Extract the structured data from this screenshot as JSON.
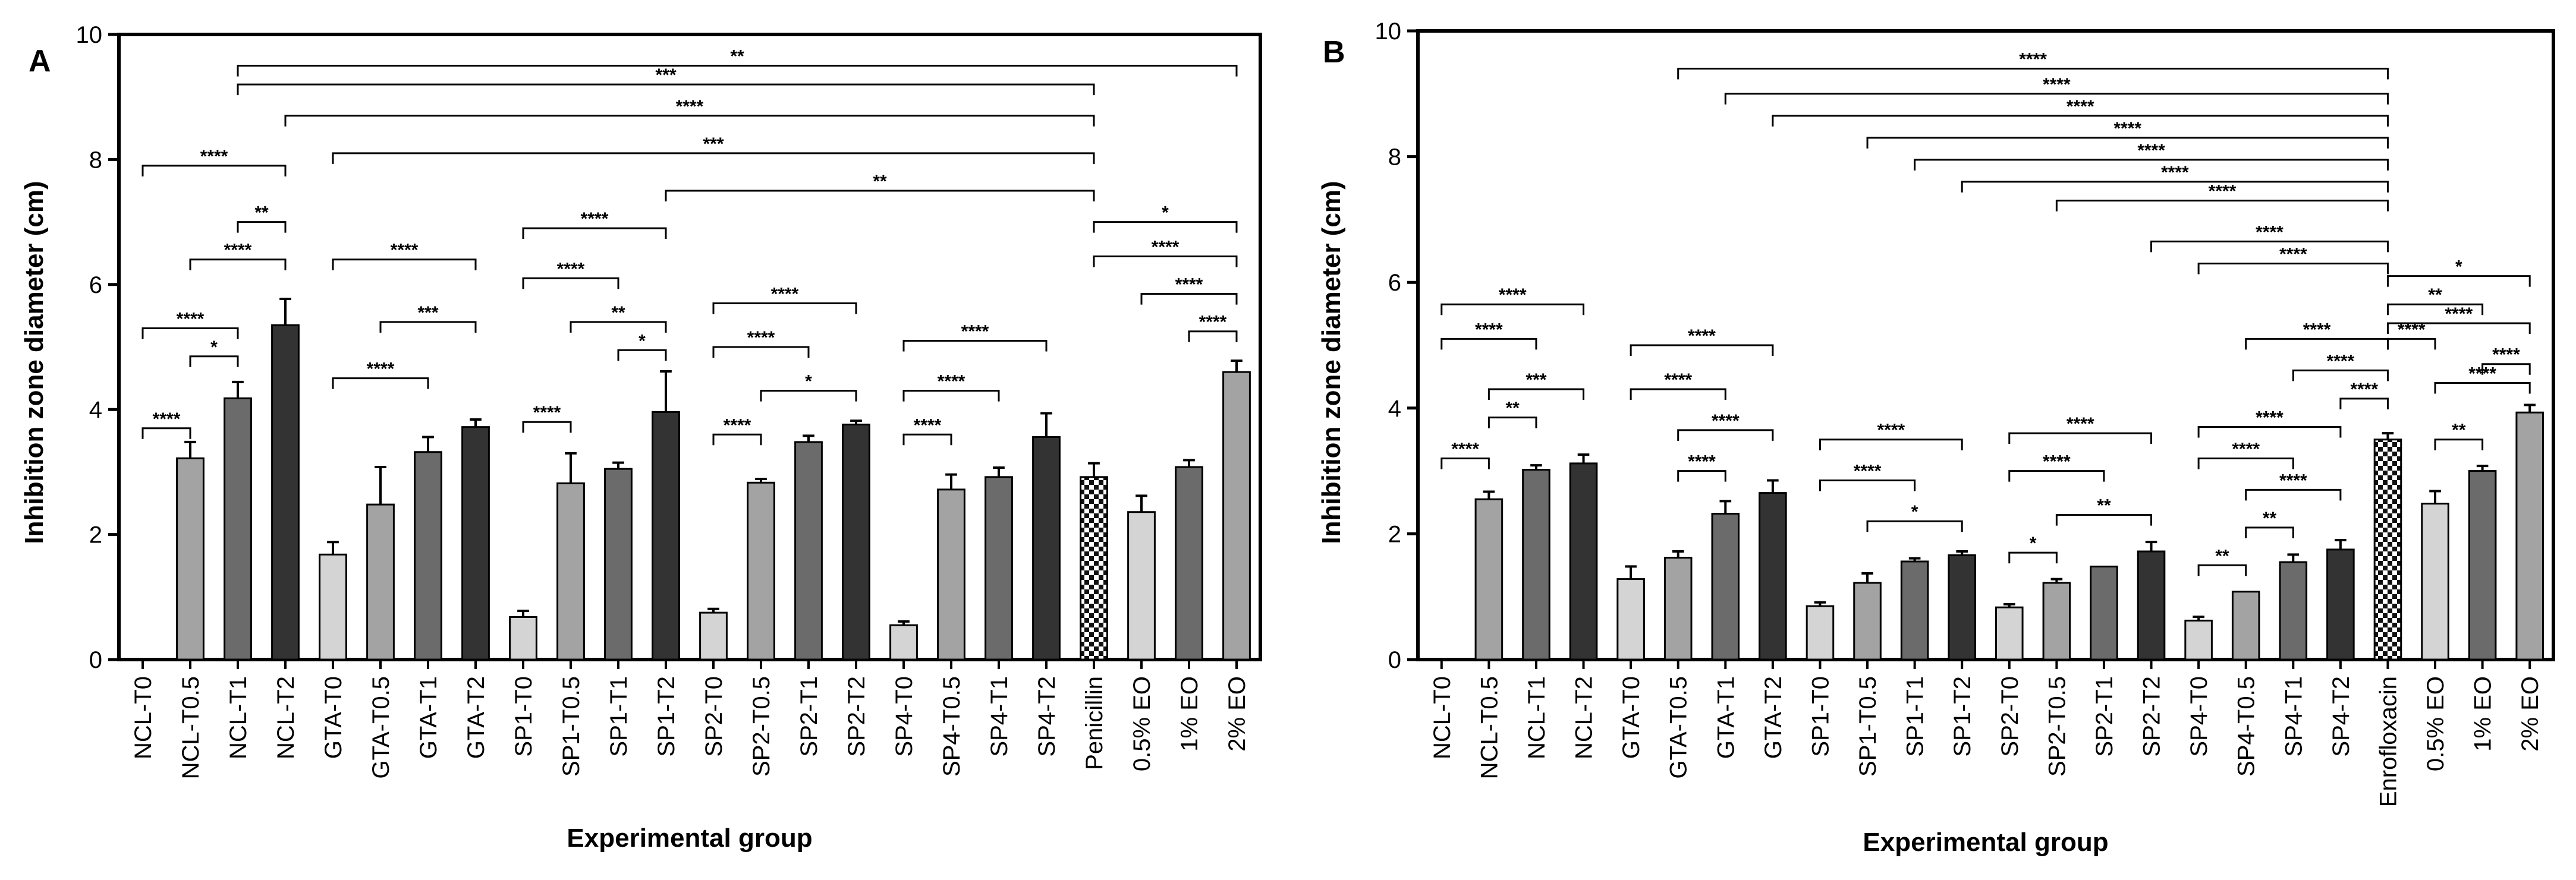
{
  "chart_data": [
    {
      "panel": "A",
      "type": "bar",
      "xlabel": "Experimental group",
      "ylabel": "Inhibition zone diameter (cm)",
      "ylim": [
        0,
        10
      ],
      "yticks": [
        0,
        2,
        4,
        6,
        8,
        10
      ],
      "categories": [
        "NCL-T0",
        "NCL-T0.5",
        "NCL-T1",
        "NCL-T2",
        "GTA-T0",
        "GTA-T0.5",
        "GTA-T1",
        "GTA-T2",
        "SP1-T0",
        "SP1-T0.5",
        "SP1-T1",
        "SP1-T2",
        "SP2-T0",
        "SP2-T0.5",
        "SP2-T1",
        "SP2-T2",
        "SP4-T0",
        "SP4-T0.5",
        "SP4-T1",
        "SP4-T2",
        "Penicillin",
        "0.5% EO",
        "1% EO",
        "2% EO"
      ],
      "values": [
        0,
        3.22,
        4.18,
        5.35,
        1.68,
        2.48,
        3.32,
        3.72,
        0.68,
        2.82,
        3.05,
        3.96,
        0.75,
        2.83,
        3.48,
        3.76,
        0.55,
        2.72,
        2.92,
        3.56,
        2.92,
        2.36,
        3.08,
        4.6
      ],
      "errors": [
        0,
        0.26,
        0.26,
        0.42,
        0.2,
        0.6,
        0.24,
        0.12,
        0.1,
        0.48,
        0.1,
        0.65,
        0.06,
        0.06,
        0.1,
        0.06,
        0.06,
        0.24,
        0.15,
        0.38,
        0.22,
        0.26,
        0.11,
        0.18
      ],
      "colors": [
        "#d4d4d4",
        "#a3a3a3",
        "#6b6b6b",
        "#333333",
        "#d4d4d4",
        "#a3a3a3",
        "#6b6b6b",
        "#333333",
        "#d4d4d4",
        "#a3a3a3",
        "#6b6b6b",
        "#333333",
        "#d4d4d4",
        "#a3a3a3",
        "#6b6b6b",
        "#333333",
        "#d4d4d4",
        "#a3a3a3",
        "#6b6b6b",
        "#333333",
        "checker",
        "#d4d4d4",
        "#6b6b6b",
        "#a3a3a3"
      ],
      "significance": [
        {
          "from": 0,
          "to": 1,
          "y": 3.7,
          "label": "****"
        },
        {
          "from": 0,
          "to": 2,
          "y": 5.3,
          "label": "****"
        },
        {
          "from": 1,
          "to": 2,
          "y": 4.85,
          "label": "*"
        },
        {
          "from": 0,
          "to": 3,
          "y": 7.9,
          "label": "****"
        },
        {
          "from": 1,
          "to": 3,
          "y": 6.4,
          "label": "****"
        },
        {
          "from": 2,
          "to": 3,
          "y": 7.0,
          "label": "**"
        },
        {
          "from": 4,
          "to": 6,
          "y": 4.5,
          "label": "****"
        },
        {
          "from": 4,
          "to": 7,
          "y": 6.4,
          "label": "****"
        },
        {
          "from": 5,
          "to": 7,
          "y": 5.4,
          "label": "***"
        },
        {
          "from": 8,
          "to": 9,
          "y": 3.8,
          "label": "****"
        },
        {
          "from": 8,
          "to": 10,
          "y": 6.1,
          "label": "****"
        },
        {
          "from": 8,
          "to": 11,
          "y": 6.9,
          "label": "****"
        },
        {
          "from": 9,
          "to": 11,
          "y": 5.4,
          "label": "**"
        },
        {
          "from": 10,
          "to": 11,
          "y": 4.95,
          "label": "*"
        },
        {
          "from": 12,
          "to": 13,
          "y": 3.6,
          "label": "****"
        },
        {
          "from": 12,
          "to": 14,
          "y": 5.0,
          "label": "****"
        },
        {
          "from": 12,
          "to": 15,
          "y": 5.7,
          "label": "****"
        },
        {
          "from": 13,
          "to": 15,
          "y": 4.3,
          "label": "*"
        },
        {
          "from": 16,
          "to": 17,
          "y": 3.6,
          "label": "****"
        },
        {
          "from": 16,
          "to": 18,
          "y": 4.3,
          "label": "****"
        },
        {
          "from": 16,
          "to": 19,
          "y": 5.1,
          "label": "****"
        },
        {
          "from": 20,
          "to": 23,
          "y": 7.0,
          "label": "*"
        },
        {
          "from": 20,
          "to": 23,
          "y": 6.45,
          "label": "****"
        },
        {
          "from": 21,
          "to": 23,
          "y": 5.85,
          "label": "****"
        },
        {
          "from": 22,
          "to": 23,
          "y": 5.25,
          "label": "****"
        },
        {
          "from": 11,
          "to": 20,
          "y": 7.5,
          "label": "**"
        },
        {
          "from": 4,
          "to": 20,
          "y": 8.1,
          "label": "***"
        },
        {
          "from": 3,
          "to": 20,
          "y": 8.7,
          "label": "****"
        },
        {
          "from": 2,
          "to": 20,
          "y": 9.2,
          "label": "***"
        },
        {
          "from": 2,
          "to": 23,
          "y": 9.5,
          "label": "**"
        }
      ]
    },
    {
      "panel": "B",
      "type": "bar",
      "xlabel": "Experimental group",
      "ylabel": "Inhibition zone diameter (cm)",
      "ylim": [
        0,
        10
      ],
      "yticks": [
        0,
        2,
        4,
        6,
        8,
        10
      ],
      "categories": [
        "NCL-T0",
        "NCL-T0.5",
        "NCL-T1",
        "NCL-T2",
        "GTA-T0",
        "GTA-T0.5",
        "GTA-T1",
        "GTA-T2",
        "SP1-T0",
        "SP1-T0.5",
        "SP1-T1",
        "SP1-T2",
        "SP2-T0",
        "SP2-T0.5",
        "SP2-T1",
        "SP2-T2",
        "SP4-T0",
        "SP4-T0.5",
        "SP4-T1",
        "SP4-T2",
        "Enrofloxacin",
        "0.5% EO",
        "1% EO",
        "2% EO"
      ],
      "values": [
        0,
        2.55,
        3.02,
        3.12,
        1.28,
        1.62,
        2.32,
        2.65,
        0.85,
        1.22,
        1.56,
        1.66,
        0.83,
        1.22,
        1.48,
        1.72,
        0.62,
        1.08,
        1.55,
        1.75,
        3.5,
        2.48,
        3.0,
        3.93
      ],
      "errors": [
        0,
        0.12,
        0.07,
        0.14,
        0.2,
        0.1,
        0.2,
        0.2,
        0.06,
        0.15,
        0.05,
        0.06,
        0.05,
        0.06,
        0.0,
        0.15,
        0.06,
        0.0,
        0.12,
        0.15,
        0.1,
        0.2,
        0.08,
        0.12
      ],
      "colors": [
        "#d4d4d4",
        "#a3a3a3",
        "#6b6b6b",
        "#333333",
        "#d4d4d4",
        "#a3a3a3",
        "#6b6b6b",
        "#333333",
        "#d4d4d4",
        "#a3a3a3",
        "#6b6b6b",
        "#333333",
        "#d4d4d4",
        "#a3a3a3",
        "#6b6b6b",
        "#333333",
        "#d4d4d4",
        "#a3a3a3",
        "#6b6b6b",
        "#333333",
        "checker",
        "#d4d4d4",
        "#6b6b6b",
        "#a3a3a3"
      ],
      "significance": [
        {
          "from": 0,
          "to": 1,
          "y": 3.2,
          "label": "****"
        },
        {
          "from": 1,
          "to": 2,
          "y": 3.85,
          "label": "**"
        },
        {
          "from": 1,
          "to": 3,
          "y": 4.3,
          "label": "***"
        },
        {
          "from": 0,
          "to": 2,
          "y": 5.1,
          "label": "****"
        },
        {
          "from": 0,
          "to": 3,
          "y": 5.65,
          "label": "****"
        },
        {
          "from": 5,
          "to": 6,
          "y": 3.0,
          "label": "****"
        },
        {
          "from": 5,
          "to": 7,
          "y": 3.65,
          "label": "****"
        },
        {
          "from": 4,
          "to": 6,
          "y": 4.3,
          "label": "****"
        },
        {
          "from": 4,
          "to": 7,
          "y": 5.0,
          "label": "****"
        },
        {
          "from": 8,
          "to": 11,
          "y": 3.5,
          "label": "****"
        },
        {
          "from": 8,
          "to": 10,
          "y": 2.85,
          "label": "****"
        },
        {
          "from": 9,
          "to": 11,
          "y": 2.2,
          "label": "*"
        },
        {
          "from": 12,
          "to": 13,
          "y": 1.7,
          "label": "*"
        },
        {
          "from": 13,
          "to": 15,
          "y": 2.3,
          "label": "**"
        },
        {
          "from": 12,
          "to": 14,
          "y": 3.0,
          "label": "****"
        },
        {
          "from": 12,
          "to": 15,
          "y": 3.6,
          "label": "****"
        },
        {
          "from": 16,
          "to": 17,
          "y": 1.5,
          "label": "**"
        },
        {
          "from": 17,
          "to": 18,
          "y": 2.1,
          "label": "**"
        },
        {
          "from": 17,
          "to": 19,
          "y": 2.7,
          "label": "****"
        },
        {
          "from": 16,
          "to": 18,
          "y": 3.2,
          "label": "****"
        },
        {
          "from": 16,
          "to": 19,
          "y": 3.7,
          "label": "****"
        },
        {
          "from": 19,
          "to": 20,
          "y": 4.15,
          "label": "****"
        },
        {
          "from": 18,
          "to": 20,
          "y": 4.6,
          "label": "****"
        },
        {
          "from": 17,
          "to": 20,
          "y": 5.1,
          "label": "****"
        },
        {
          "from": 16,
          "to": 20,
          "y": 6.3,
          "label": "****"
        },
        {
          "from": 15,
          "to": 20,
          "y": 6.65,
          "label": "****"
        },
        {
          "from": 13,
          "to": 20,
          "y": 7.3,
          "label": "****"
        },
        {
          "from": 11,
          "to": 20,
          "y": 7.6,
          "label": "****"
        },
        {
          "from": 10,
          "to": 20,
          "y": 7.95,
          "label": "****"
        },
        {
          "from": 9,
          "to": 20,
          "y": 8.3,
          "label": "****"
        },
        {
          "from": 7,
          "to": 20,
          "y": 8.65,
          "label": "****"
        },
        {
          "from": 6,
          "to": 20,
          "y": 9.0,
          "label": "****"
        },
        {
          "from": 5,
          "to": 20,
          "y": 9.4,
          "label": "****"
        },
        {
          "from": 20,
          "to": 21,
          "y": 5.1,
          "label": "****"
        },
        {
          "from": 21,
          "to": 23,
          "y": 4.4,
          "label": "****"
        },
        {
          "from": 22,
          "to": 23,
          "y": 4.7,
          "label": "****"
        },
        {
          "from": 21,
          "to": 22,
          "y": 3.5,
          "label": "**"
        },
        {
          "from": 20,
          "to": 22,
          "y": 5.65,
          "label": "**"
        },
        {
          "from": 20,
          "to": 23,
          "y": 6.1,
          "label": "*"
        },
        {
          "from": 20,
          "to": 23,
          "y": 5.35,
          "label": "****"
        }
      ]
    }
  ]
}
